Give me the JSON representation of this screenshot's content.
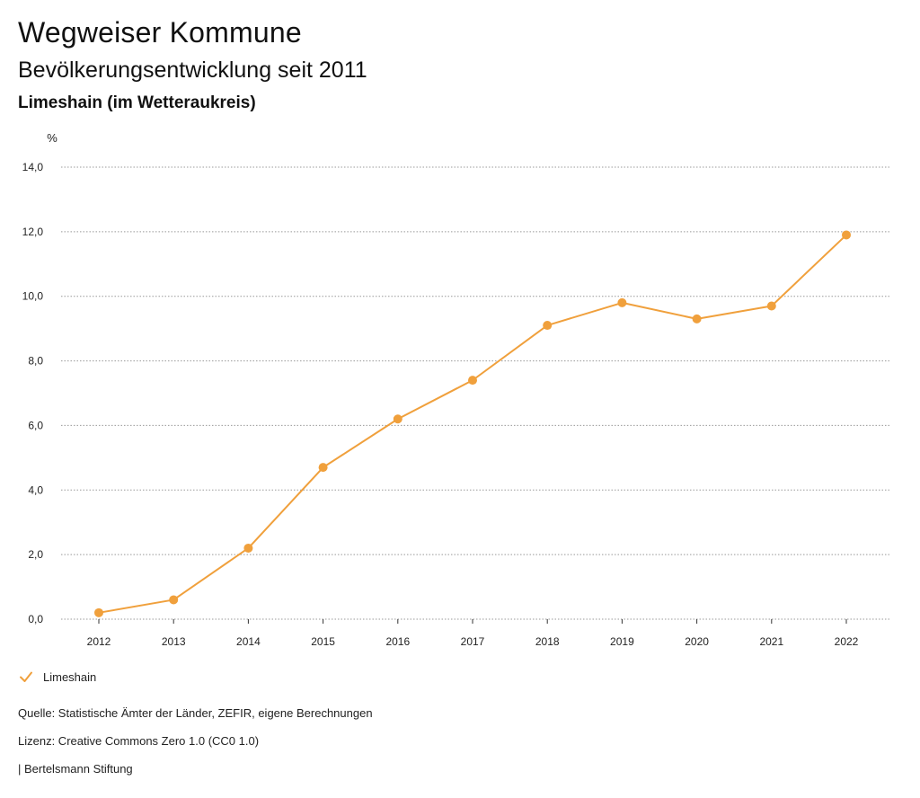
{
  "header": {
    "title": "Wegweiser Kommune",
    "subtitle": "Bevölkerungsentwicklung seit 2011",
    "place": "Limeshain (im Wetteraukreis)"
  },
  "colors": {
    "series": "#f0a03c",
    "grid": "#999999",
    "axis": "#333333"
  },
  "chart_data": {
    "type": "line",
    "title": "Bevölkerungsentwicklung seit 2011",
    "ylabel": "%",
    "xlabel": "",
    "x": [
      "2012",
      "2013",
      "2014",
      "2015",
      "2016",
      "2017",
      "2018",
      "2019",
      "2020",
      "2021",
      "2022"
    ],
    "series": [
      {
        "name": "Limeshain",
        "values": [
          0.2,
          0.6,
          2.2,
          4.7,
          6.2,
          7.4,
          9.1,
          9.8,
          9.3,
          9.7,
          11.9
        ]
      }
    ],
    "ylim": [
      0,
      14
    ],
    "yticks": [
      0,
      2,
      4,
      6,
      8,
      10,
      12,
      14
    ],
    "ytick_labels": [
      "0,0",
      "2,0",
      "4,0",
      "6,0",
      "8,0",
      "10,0",
      "12,0",
      "14,0"
    ],
    "grid": true,
    "legend": "bottom-left"
  },
  "legend": {
    "label": "Limeshain",
    "icon": "check-icon"
  },
  "footer": {
    "source": "Quelle: Statistische Ämter der Länder, ZEFIR, eigene Berechnungen",
    "license": "Lizenz: Creative Commons Zero 1.0 (CC0 1.0)",
    "publisher": "| Bertelsmann Stiftung"
  }
}
